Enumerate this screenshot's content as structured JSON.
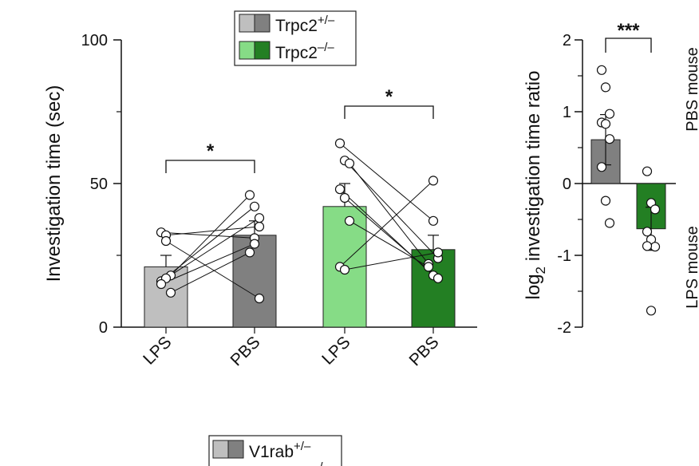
{
  "chart_data": [
    {
      "type": "bar",
      "ylabel": "Investigation time (sec)",
      "ylim": [
        0,
        100
      ],
      "yticks": [
        "0",
        "50",
        "100"
      ],
      "categories": [
        "LPS",
        "PBS",
        "LPS",
        "PBS"
      ],
      "groups": [
        "Trpc2+/–",
        "Trpc2+/–",
        "Trpc2–/–",
        "Trpc2–/–"
      ],
      "means": [
        21,
        32,
        42,
        27
      ],
      "errors": [
        4,
        5,
        8,
        5
      ],
      "colors": [
        "#bfbfbf",
        "#808080",
        "#86dc86",
        "#237f23"
      ],
      "pairs": [
        [
          [
            33,
            31
          ],
          [
            32,
            35
          ],
          [
            18,
            46
          ],
          [
            16,
            42
          ],
          [
            17,
            38
          ],
          [
            12,
            26
          ],
          [
            15,
            29
          ],
          [
            30,
            10
          ]
        ],
        [
          [
            64,
            37
          ],
          [
            58,
            24
          ],
          [
            57,
            22
          ],
          [
            48,
            18
          ],
          [
            45,
            17
          ],
          [
            37,
            21
          ],
          [
            21,
            51
          ],
          [
            20,
            26
          ]
        ]
      ],
      "significance": [
        {
          "between": [
            0,
            1
          ],
          "label": "*"
        },
        {
          "between": [
            2,
            3
          ],
          "label": "*"
        }
      ],
      "legend": [
        {
          "label": "Trpc2",
          "sup": "+/–",
          "light": "#bfbfbf",
          "dark": "#808080"
        },
        {
          "label": "Trpc2",
          "sup": "–/–",
          "light": "#86dc86",
          "dark": "#237f23"
        }
      ]
    },
    {
      "type": "bar",
      "ylabel_main": "log",
      "ylabel_sub": "2",
      "ylabel_rest": " investigation time ratio",
      "ylim": [
        -2,
        2
      ],
      "yticks": [
        "-2",
        "-1",
        "0",
        "1",
        "2"
      ],
      "means": [
        0.61,
        -0.63
      ],
      "errors": [
        0.35,
        0.3
      ],
      "colors": [
        "#808080",
        "#237f23"
      ],
      "points": [
        [
          1.58,
          1.34,
          0.97,
          0.85,
          0.83,
          0.62,
          0.23,
          -0.24,
          -0.55
        ],
        [
          0.17,
          -0.27,
          -0.36,
          -0.67,
          -0.78,
          -0.88,
          -0.87,
          -1.77
        ]
      ],
      "significance": {
        "label": "***"
      },
      "top_label": "PBS mouse",
      "bottom_label": "LPS mouse"
    }
  ],
  "legend2": {
    "label": "V1rab",
    "sup": "+/–",
    "sup2": "–/–",
    "light": "#bfbfbf",
    "dark": "#808080"
  }
}
